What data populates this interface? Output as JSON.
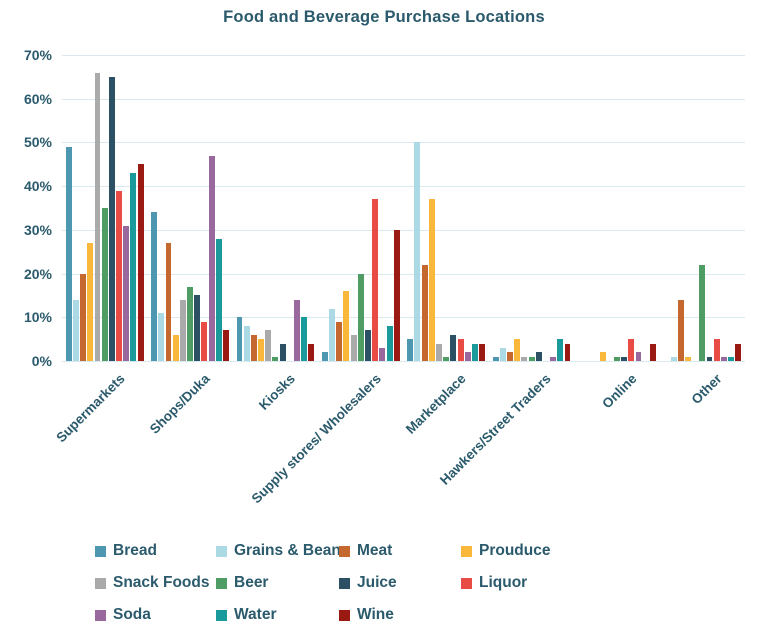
{
  "title": "Food and Beverage Purchase Locations",
  "colors": {
    "background": "#FFFFFF",
    "text": "#2A5A6C",
    "gridline": "#DAE8EF"
  },
  "chart_data": {
    "type": "bar",
    "title": "Food and Beverage Purchase Locations",
    "xlabel": "",
    "ylabel": "",
    "grid": true,
    "legend_position": "bottom",
    "y_axis": {
      "min": 0,
      "max": 70,
      "step": 10,
      "format": "percent"
    },
    "categories": [
      "Supermarkets",
      "Shops/Duka",
      "Kiosks",
      "Supply stores/ Wholesalers",
      "Marketplace",
      "Hawkers/Street Traders",
      "Online",
      "Other"
    ],
    "series": [
      {
        "name": "Bread",
        "color": "#4D97B1",
        "values": [
          49,
          34,
          10,
          2,
          5,
          1,
          0,
          0
        ]
      },
      {
        "name": "Grains & Beans",
        "color": "#ABD9E4",
        "values": [
          14,
          11,
          8,
          12,
          50,
          3,
          0,
          1
        ]
      },
      {
        "name": "Meat",
        "color": "#C4682F",
        "values": [
          20,
          27,
          6,
          9,
          22,
          2,
          0,
          14
        ]
      },
      {
        "name": "Prouduce",
        "color": "#F9B73B",
        "values": [
          27,
          6,
          5,
          16,
          37,
          5,
          2,
          1
        ]
      },
      {
        "name": "Snack Foods",
        "color": "#AAAAAA",
        "values": [
          66,
          14,
          7,
          6,
          4,
          1,
          0,
          0
        ]
      },
      {
        "name": "Beer",
        "color": "#4F9C64",
        "values": [
          35,
          17,
          1,
          20,
          1,
          1,
          1,
          22
        ]
      },
      {
        "name": "Juice",
        "color": "#2C5064",
        "values": [
          65,
          15,
          4,
          7,
          6,
          2,
          1,
          1
        ]
      },
      {
        "name": "Liquor",
        "color": "#E94C44",
        "values": [
          39,
          9,
          0,
          37,
          5,
          0,
          5,
          5
        ]
      },
      {
        "name": "Soda",
        "color": "#99689D",
        "values": [
          31,
          47,
          14,
          3,
          2,
          1,
          2,
          1
        ]
      },
      {
        "name": "Water",
        "color": "#1B9A9B",
        "values": [
          43,
          28,
          10,
          8,
          4,
          5,
          0,
          1
        ]
      },
      {
        "name": "Wine",
        "color": "#9A1A13",
        "values": [
          45,
          7,
          4,
          30,
          4,
          4,
          4,
          4
        ]
      }
    ]
  }
}
